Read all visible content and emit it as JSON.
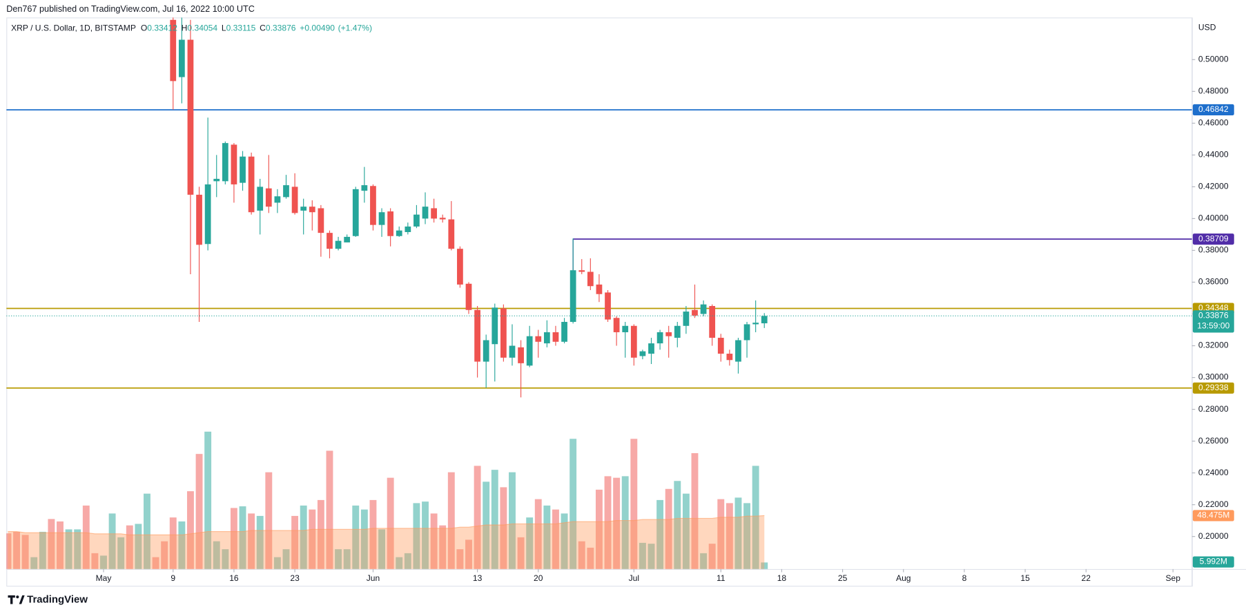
{
  "page": {
    "byline": "Den767 published on TradingView.com, Jul 16, 2022 10:00 UTC",
    "brand": "TradingView"
  },
  "chart_data": {
    "type": "candlestick",
    "title": "XRP / U.S. Dollar, 1D, BITSTAMP",
    "legend_keys": [
      "O",
      "H",
      "L",
      "C"
    ],
    "change": {
      "value": 0.0049,
      "label": "+0.00490"
    },
    "change_pct": {
      "value": 1.47,
      "label": "(+1.47%)"
    },
    "y_axis_label": "USD",
    "countdown": "13:59:00",
    "up_color": "#26a69a",
    "down_color": "#ef5350",
    "grid": false,
    "x": [
      "2022-04-20",
      "2022-04-21",
      "2022-04-22",
      "2022-04-23",
      "2022-04-24",
      "2022-04-25",
      "2022-04-26",
      "2022-04-27",
      "2022-04-28",
      "2022-04-29",
      "2022-04-30",
      "2022-05-01",
      "2022-05-02",
      "2022-05-03",
      "2022-05-04",
      "2022-05-05",
      "2022-05-06",
      "2022-05-07",
      "2022-05-08",
      "2022-05-09",
      "2022-05-10",
      "2022-05-11",
      "2022-05-12",
      "2022-05-13",
      "2022-05-14",
      "2022-05-15",
      "2022-05-16",
      "2022-05-17",
      "2022-05-18",
      "2022-05-19",
      "2022-05-20",
      "2022-05-21",
      "2022-05-22",
      "2022-05-23",
      "2022-05-24",
      "2022-05-25",
      "2022-05-26",
      "2022-05-27",
      "2022-05-28",
      "2022-05-29",
      "2022-05-30",
      "2022-05-31",
      "2022-06-01",
      "2022-06-02",
      "2022-06-03",
      "2022-06-04",
      "2022-06-05",
      "2022-06-06",
      "2022-06-07",
      "2022-06-08",
      "2022-06-09",
      "2022-06-10",
      "2022-06-11",
      "2022-06-12",
      "2022-06-13",
      "2022-06-14",
      "2022-06-15",
      "2022-06-16",
      "2022-06-17",
      "2022-06-18",
      "2022-06-19",
      "2022-06-20",
      "2022-06-21",
      "2022-06-22",
      "2022-06-23",
      "2022-06-24",
      "2022-06-25",
      "2022-06-26",
      "2022-06-27",
      "2022-06-28",
      "2022-06-29",
      "2022-06-30",
      "2022-07-01",
      "2022-07-02",
      "2022-07-03",
      "2022-07-04",
      "2022-07-05",
      "2022-07-06",
      "2022-07-07",
      "2022-07-08",
      "2022-07-09",
      "2022-07-10",
      "2022-07-11",
      "2022-07-12",
      "2022-07-13",
      "2022-07-14",
      "2022-07-15",
      "2022-07-16"
    ],
    "open": [
      null,
      null,
      null,
      null,
      null,
      null,
      null,
      null,
      null,
      null,
      null,
      null,
      null,
      null,
      null,
      null,
      null,
      null,
      null,
      0.525,
      0.489,
      0.5125,
      0.415,
      0.384,
      0.4235,
      0.4235,
      0.4465,
      0.4225,
      0.439,
      0.405,
      0.419,
      0.41,
      0.4135,
      0.42,
      0.405,
      0.4075,
      0.4065,
      0.391,
      0.381,
      0.385,
      0.389,
      0.4175,
      0.4205,
      0.396,
      0.4045,
      0.389,
      0.3915,
      0.395,
      0.4,
      0.4065,
      0.4005,
      0.3995,
      0.381,
      0.359,
      0.3425,
      0.31,
      0.321,
      0.3435,
      0.3125,
      0.319,
      0.3075,
      0.326,
      0.3215,
      0.3285,
      0.3225,
      0.335,
      0.3675,
      0.3665,
      0.3585,
      0.3535,
      0.3375,
      0.3285,
      0.3325,
      0.3135,
      0.315,
      0.3215,
      0.3285,
      0.325,
      0.3325,
      0.3425,
      0.34,
      0.345,
      0.325,
      0.315,
      0.31,
      0.3235,
      0.3335,
      0.33412
    ],
    "high": [
      null,
      null,
      null,
      null,
      null,
      null,
      null,
      null,
      null,
      null,
      null,
      null,
      null,
      null,
      null,
      null,
      null,
      null,
      null,
      0.5325,
      0.5265,
      0.525,
      0.42,
      0.4635,
      0.44,
      0.4485,
      0.4475,
      0.4425,
      0.4415,
      0.425,
      0.44,
      0.4185,
      0.4275,
      0.4285,
      0.4125,
      0.4115,
      0.4085,
      0.3925,
      0.3885,
      0.39,
      0.42,
      0.4325,
      0.4215,
      0.4065,
      0.4065,
      0.395,
      0.3975,
      0.4085,
      0.4165,
      0.4125,
      0.4025,
      0.411,
      0.3825,
      0.36,
      0.345,
      0.327,
      0.3465,
      0.346,
      0.3335,
      0.3235,
      0.3325,
      0.33,
      0.336,
      0.3325,
      0.3375,
      0.3875,
      0.3745,
      0.375,
      0.365,
      0.355,
      0.3385,
      0.335,
      0.3335,
      0.3175,
      0.325,
      0.33,
      0.3325,
      0.335,
      0.345,
      0.3585,
      0.3485,
      0.346,
      0.3275,
      0.3175,
      0.325,
      0.335,
      0.3485,
      0.34054
    ],
    "low": [
      null,
      null,
      null,
      null,
      null,
      null,
      null,
      null,
      null,
      null,
      null,
      null,
      null,
      null,
      null,
      null,
      null,
      null,
      null,
      0.4685,
      0.4725,
      0.365,
      0.335,
      0.38,
      0.4135,
      0.4215,
      0.41,
      0.4175,
      0.4025,
      0.39,
      0.4035,
      0.4035,
      0.4125,
      0.4025,
      0.39,
      0.3925,
      0.376,
      0.375,
      0.38,
      0.385,
      0.3885,
      0.41,
      0.3925,
      0.3885,
      0.3825,
      0.3885,
      0.39,
      0.394,
      0.3965,
      0.3975,
      0.3975,
      0.38,
      0.3565,
      0.34,
      0.3,
      0.2935,
      0.2975,
      0.31,
      0.3075,
      0.2875,
      0.3065,
      0.3125,
      0.319,
      0.32,
      0.3215,
      0.334,
      0.365,
      0.355,
      0.3475,
      0.335,
      0.32,
      0.3125,
      0.3075,
      0.3115,
      0.3085,
      0.3175,
      0.3125,
      0.319,
      0.3275,
      0.3375,
      0.3385,
      0.32,
      0.31,
      0.3075,
      0.3025,
      0.3125,
      0.3285,
      0.33115
    ],
    "close": [
      null,
      null,
      null,
      null,
      null,
      null,
      null,
      null,
      null,
      null,
      null,
      null,
      null,
      null,
      null,
      null,
      null,
      null,
      null,
      0.4865,
      0.5125,
      0.415,
      0.3835,
      0.4215,
      0.425,
      0.4475,
      0.4215,
      0.439,
      0.404,
      0.42,
      0.4075,
      0.414,
      0.421,
      0.4035,
      0.4075,
      0.404,
      0.391,
      0.381,
      0.386,
      0.3885,
      0.4185,
      0.421,
      0.396,
      0.404,
      0.389,
      0.3925,
      0.395,
      0.4025,
      0.4075,
      0.4,
      0.3995,
      0.381,
      0.3585,
      0.3425,
      0.31,
      0.3235,
      0.344,
      0.3125,
      0.32,
      0.309,
      0.326,
      0.3225,
      0.3285,
      0.3225,
      0.335,
      0.3675,
      0.3665,
      0.3575,
      0.3525,
      0.3365,
      0.3285,
      0.3325,
      0.3125,
      0.3165,
      0.3215,
      0.3285,
      0.326,
      0.3325,
      0.3415,
      0.339,
      0.346,
      0.325,
      0.315,
      0.311,
      0.3235,
      0.3335,
      0.3345,
      0.33876
    ],
    "volume": {
      "values": [
        32.4,
        33.8,
        31.0,
        10.8,
        33.8,
        45.4,
        43.2,
        36.0,
        36.0,
        57.6,
        14.4,
        12.2,
        50.4,
        28.8,
        39.6,
        41.0,
        68.4,
        10.8,
        25.2,
        46.8,
        43.2,
        70.6,
        104.4,
        124.6,
        25.2,
        18.0,
        55.4,
        56.9,
        50.4,
        48.2,
        87.8,
        10.8,
        18.0,
        48.2,
        57.6,
        54.0,
        62.6,
        107.3,
        18.0,
        18.0,
        57.6,
        54.0,
        62.6,
        36.0,
        82.8,
        10.8,
        14.4,
        59.8,
        61.2,
        50.4,
        39.6,
        87.8,
        18.0,
        26.6,
        93.6,
        79.2,
        90.0,
        74.2,
        87.8,
        28.8,
        46.8,
        63.4,
        57.6,
        54.0,
        50.4,
        118.1,
        25.2,
        19.4,
        72.0,
        84.2,
        82.8,
        84.2,
        118.1,
        23.8,
        23.0,
        62.6,
        72.7,
        79.9,
        68.4,
        105.1,
        14.4,
        23.0,
        63.4,
        59.8,
        64.8,
        59.8,
        93.6,
        5.992
      ],
      "colors": [
        "#ef5350",
        "#ef5350",
        "#ef5350",
        "#26a69a",
        "#26a69a",
        "#ef5350",
        "#ef5350",
        "#26a69a",
        "#26a69a",
        "#ef5350",
        "#ef5350",
        "#26a69a",
        "#26a69a",
        "#26a69a",
        "#ef5350",
        "#26a69a",
        "#26a69a",
        "#ef5350",
        "#ef5350",
        "#ef5350",
        "#26a69a",
        "#ef5350",
        "#ef5350",
        "#26a69a",
        "#26a69a",
        "#26a69a",
        "#ef5350",
        "#26a69a",
        "#ef5350",
        "#26a69a",
        "#ef5350",
        "#26a69a",
        "#26a69a",
        "#ef5350",
        "#26a69a",
        "#ef5350",
        "#ef5350",
        "#ef5350",
        "#26a69a",
        "#26a69a",
        "#26a69a",
        "#26a69a",
        "#ef5350",
        "#26a69a",
        "#ef5350",
        "#26a69a",
        "#26a69a",
        "#26a69a",
        "#26a69a",
        "#ef5350",
        "#ef5350",
        "#ef5350",
        "#ef5350",
        "#ef5350",
        "#ef5350",
        "#26a69a",
        "#26a69a",
        "#ef5350",
        "#26a69a",
        "#ef5350",
        "#26a69a",
        "#ef5350",
        "#26a69a",
        "#ef5350",
        "#26a69a",
        "#26a69a",
        "#ef5350",
        "#ef5350",
        "#ef5350",
        "#ef5350",
        "#ef5350",
        "#26a69a",
        "#ef5350",
        "#26a69a",
        "#26a69a",
        "#26a69a",
        "#ef5350",
        "#26a69a",
        "#26a69a",
        "#ef5350",
        "#26a69a",
        "#ef5350",
        "#ef5350",
        "#ef5350",
        "#26a69a",
        "#26a69a",
        "#26a69a",
        "#26a69a"
      ],
      "last_label": "5.992M",
      "last_color": "#26a69a"
    },
    "volume_ma": {
      "values": [
        34,
        34,
        33,
        33,
        33,
        33,
        33,
        33,
        33,
        33,
        32,
        32,
        32,
        32,
        31,
        31,
        31,
        31,
        31,
        31,
        31,
        32,
        33,
        34,
        34,
        34,
        34,
        34,
        35,
        35,
        35,
        35,
        35,
        35,
        35,
        36,
        36,
        36,
        36,
        36,
        36,
        36,
        37,
        37,
        37,
        37,
        37,
        37,
        37,
        37,
        37,
        37,
        38,
        38,
        39,
        40,
        40,
        40,
        41,
        41,
        41,
        41,
        41,
        41,
        42,
        43,
        43,
        43,
        43,
        43,
        44,
        44,
        44,
        45,
        45,
        45,
        45,
        46,
        46,
        46,
        46,
        46,
        47,
        47,
        47,
        48,
        48,
        48.475
      ],
      "last_label": "48.475M",
      "color": "#ff9a5c"
    },
    "volume_ylim": [
      0,
      245
    ],
    "levels": [
      {
        "value": 0.46842,
        "color": "#1e6fcc"
      },
      {
        "value": 0.38709,
        "color": "#512da8",
        "from": "2022-06-24"
      },
      {
        "value": 0.34348,
        "color": "#b89a00"
      },
      {
        "value": 0.29338,
        "color": "#b89a00"
      }
    ],
    "xlim": [
      "2022-04-19",
      "2022-09-03"
    ],
    "xticks": [
      {
        "value": "2022-05-01",
        "label": "May"
      },
      {
        "value": "2022-05-09",
        "label": "9"
      },
      {
        "value": "2022-05-16",
        "label": "16"
      },
      {
        "value": "2022-05-23",
        "label": "23"
      },
      {
        "value": "2022-06-01",
        "label": "Jun"
      },
      {
        "value": "2022-06-13",
        "label": "13"
      },
      {
        "value": "2022-06-20",
        "label": "20"
      },
      {
        "value": "2022-07-01",
        "label": "Jul"
      },
      {
        "value": "2022-07-11",
        "label": "11"
      },
      {
        "value": "2022-07-18",
        "label": "18"
      },
      {
        "value": "2022-07-25",
        "label": "25"
      },
      {
        "value": "2022-08-01",
        "label": "Aug"
      },
      {
        "value": "2022-08-08",
        "label": "8"
      },
      {
        "value": "2022-08-15",
        "label": "15"
      },
      {
        "value": "2022-08-22",
        "label": "22"
      },
      {
        "value": "2022-09-01",
        "label": "Sep"
      }
    ],
    "ylim": [
      0.1795,
      0.5265
    ],
    "yticks": [
      {
        "value": 0.2,
        "label": "0.20000"
      },
      {
        "value": 0.22,
        "label": "0.22000"
      },
      {
        "value": 0.24,
        "label": "0.24000"
      },
      {
        "value": 0.26,
        "label": "0.26000"
      },
      {
        "value": 0.28,
        "label": "0.28000"
      },
      {
        "value": 0.3,
        "label": "0.30000"
      },
      {
        "value": 0.32,
        "label": "0.32000"
      },
      {
        "value": 0.34,
        "label": "0.34000"
      },
      {
        "value": 0.36,
        "label": "0.36000"
      },
      {
        "value": 0.38,
        "label": "0.38000"
      },
      {
        "value": 0.4,
        "label": "0.40000"
      },
      {
        "value": 0.42,
        "label": "0.42000"
      },
      {
        "value": 0.44,
        "label": "0.44000"
      },
      {
        "value": 0.46,
        "label": "0.46000"
      },
      {
        "value": 0.48,
        "label": "0.48000"
      },
      {
        "value": 0.5,
        "label": "0.50000"
      }
    ]
  }
}
